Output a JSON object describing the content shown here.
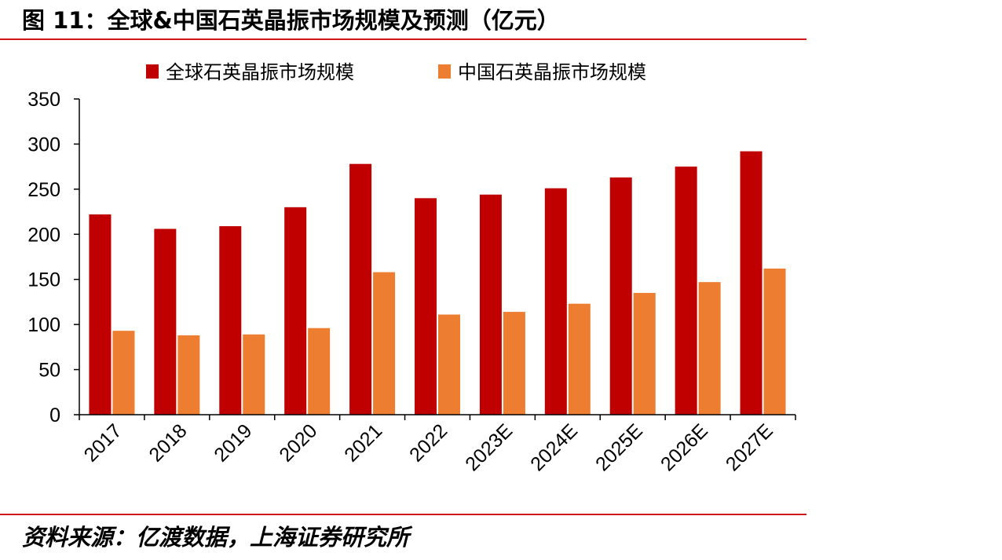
{
  "title": "图 11：全球&中国石英晶振市场规模及预测（亿元）",
  "source": "资料来源：亿渡数据，上海证券研究所",
  "colors": {
    "accent_rule": "#d01818",
    "series_global": "#c00000",
    "series_china": "#ed7d31",
    "axis": "#000000"
  },
  "chart_data": {
    "type": "bar",
    "title": "图 11：全球&中国石英晶振市场规模及预测（亿元）",
    "xlabel": "",
    "ylabel": "",
    "categories": [
      "2017",
      "2018",
      "2019",
      "2020",
      "2021",
      "2022",
      "2023E",
      "2024E",
      "2025E",
      "2026E",
      "2027E"
    ],
    "series": [
      {
        "name": "全球石英晶振市场规模",
        "color": "#c00000",
        "values": [
          222,
          206,
          209,
          230,
          278,
          240,
          244,
          251,
          263,
          275,
          292
        ]
      },
      {
        "name": "中国石英晶振市场规模",
        "color": "#ed7d31",
        "values": [
          93,
          88,
          89,
          96,
          158,
          111,
          114,
          123,
          135,
          147,
          162
        ]
      }
    ],
    "ylim": [
      0,
      350
    ],
    "yticks": [
      0,
      50,
      100,
      150,
      200,
      250,
      300,
      350
    ],
    "grid": false,
    "legend_position": "top-center"
  }
}
